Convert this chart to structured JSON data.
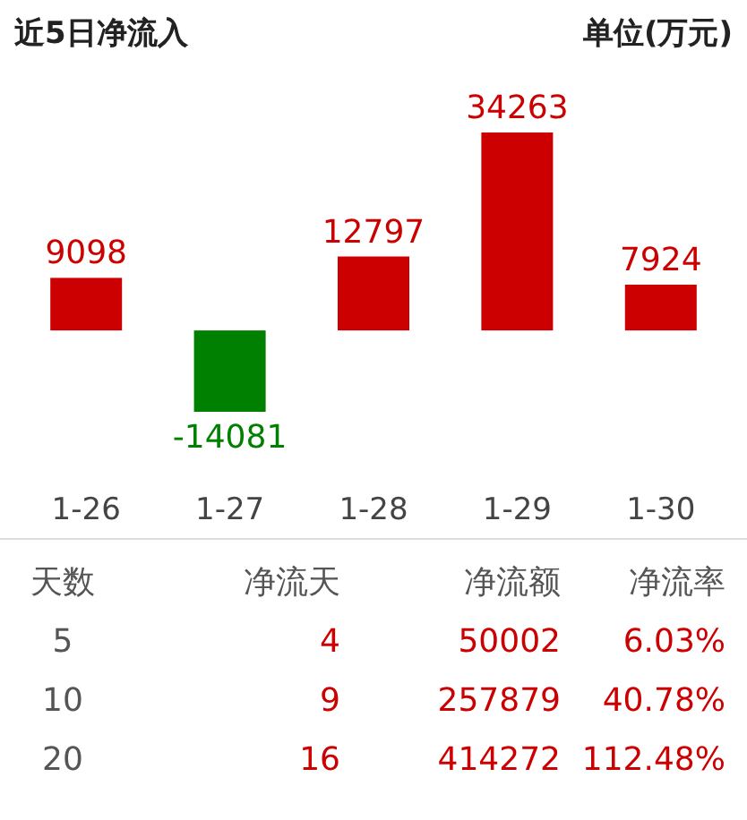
{
  "chart_data": {
    "type": "bar",
    "title": "近5日净流入",
    "subtitle": "单位(万元)",
    "categories": [
      "1-26",
      "1-27",
      "1-28",
      "1-29",
      "1-30"
    ],
    "values": [
      9098,
      -14081,
      12797,
      34263,
      7924
    ],
    "colors": [
      "#cc0000",
      "#008000",
      "#cc0000",
      "#cc0000",
      "#cc0000"
    ],
    "data_labels": true,
    "annotations": [
      "天数",
      "净流天",
      "净流额",
      "净流率",
      "5",
      "4",
      "50002",
      "6.03%",
      "10",
      "9",
      "257879",
      "40.78%",
      "20",
      "16",
      "414272",
      "112.48%"
    ]
  }
}
